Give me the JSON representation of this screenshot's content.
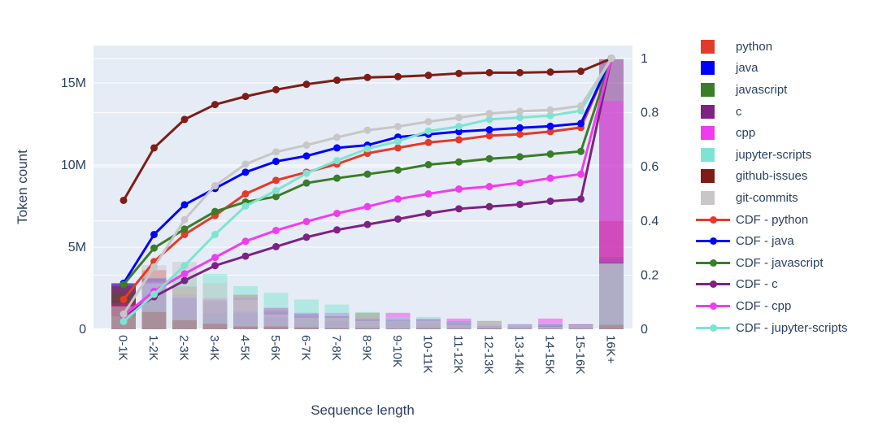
{
  "chart_data": {
    "type": "bar+line",
    "title": "",
    "xlabel": "Sequence length",
    "categories": [
      "0-1K",
      "1-2K",
      "2-3K",
      "3-4K",
      "4-5K",
      "5-6K",
      "6-7K",
      "7-8K",
      "8-9K",
      "9-10K",
      "10-11K",
      "11-12K",
      "12-13K",
      "13-14K",
      "14-15K",
      "15-16K",
      "16K+"
    ],
    "left_axis": {
      "label": "Token count",
      "tick_labels": [
        "0",
        "5M",
        "10M",
        "15M"
      ],
      "tick_values": [
        0,
        5,
        10,
        15
      ],
      "range": [
        0,
        17.28
      ],
      "unit": "millions of tokens"
    },
    "right_axis": {
      "tick_labels": [
        "0",
        "0.2",
        "0.4",
        "0.6",
        "0.8",
        "1"
      ],
      "tick_values": [
        0,
        0.2,
        0.4,
        0.6,
        0.8,
        1
      ],
      "range": [
        0,
        1.048
      ]
    },
    "grid": "on",
    "legend_position": "right",
    "plot_bg": "#e5ecf6",
    "text_color": "#2a3f5f",
    "bar_opacity": 0.5,
    "bar_series": [
      {
        "name": "python",
        "color": "#e23b2c",
        "values": [
          2.8,
          3.6,
          2.6,
          1.8,
          2.1,
          1.3,
          0.8,
          0.8,
          1.0,
          0.5,
          0.5,
          0.3,
          0.5,
          0.2,
          0.3,
          0.3,
          6.6
        ]
      },
      {
        "name": "java",
        "color": "#0000ff",
        "values": [
          2.8,
          3.1,
          1.9,
          1.0,
          1.0,
          0.7,
          0.3,
          0.5,
          0.2,
          0.5,
          0.2,
          0.2,
          0.2,
          0.1,
          0.2,
          0.2,
          4.1
        ]
      },
      {
        "name": "javascript",
        "color": "#3a7d28",
        "values": [
          2.2,
          1.7,
          0.9,
          0.9,
          0.4,
          0.3,
          0.6,
          0.3,
          0.2,
          0.3,
          0.3,
          0.2,
          0.2,
          0.2,
          0.2,
          0.2,
          4.4
        ]
      },
      {
        "name": "c",
        "color": "#7f2183",
        "values": [
          1.6,
          2.2,
          1.9,
          1.7,
          1.1,
          1.1,
          0.95,
          0.8,
          0.6,
          0.6,
          0.6,
          0.5,
          0.2,
          0.3,
          0.3,
          0.3,
          16.45
        ]
      },
      {
        "name": "cpp",
        "color": "#ef3dee",
        "values": [
          1.6,
          2.9,
          2.1,
          1.9,
          1.9,
          1.3,
          1.0,
          1.0,
          0.65,
          1.0,
          0.65,
          0.65,
          0.3,
          0.3,
          0.65,
          0.3,
          13.9
        ]
      },
      {
        "name": "jupyter-scripts",
        "color": "#7fe3d2",
        "values": [
          0.8,
          2.8,
          3.3,
          3.37,
          2.63,
          2.22,
          1.81,
          1.51,
          1.05,
          0.75,
          0.75,
          0.5,
          0.45,
          0.3,
          0.33,
          0.28,
          4.0
        ]
      },
      {
        "name": "github-issues",
        "color": "#7d1d16",
        "values": [
          2.63,
          1.05,
          0.55,
          0.33,
          0.17,
          0.17,
          0.11,
          0.06,
          0.06,
          0.03,
          0.06,
          0.03,
          0.06,
          0.02,
          0.02,
          0.02,
          0.27
        ]
      },
      {
        "name": "git-commits",
        "color": "#c8c6c6",
        "values": [
          1.4,
          3.9,
          4.1,
          2.8,
          1.8,
          0.9,
          0.7,
          0.7,
          0.5,
          0.5,
          0.5,
          0.25,
          0.5,
          0.25,
          0.15,
          0.25,
          4.0
        ]
      }
    ],
    "cdf_series": [
      {
        "name": "CDF - python",
        "color": "#e23b2c",
        "in_legend": true,
        "values": [
          0.11,
          0.25,
          0.35,
          0.42,
          0.5,
          0.55,
          0.58,
          0.61,
          0.65,
          0.67,
          0.69,
          0.7,
          0.715,
          0.72,
          0.73,
          0.745,
          1.0
        ]
      },
      {
        "name": "CDF - java",
        "color": "#0000ff",
        "in_legend": true,
        "values": [
          0.17,
          0.35,
          0.46,
          0.52,
          0.58,
          0.62,
          0.64,
          0.67,
          0.68,
          0.71,
          0.72,
          0.73,
          0.737,
          0.744,
          0.75,
          0.76,
          1.0
        ]
      },
      {
        "name": "CDF - javascript",
        "color": "#3a7d28",
        "in_legend": true,
        "values": [
          0.165,
          0.3,
          0.37,
          0.435,
          0.47,
          0.49,
          0.54,
          0.558,
          0.573,
          0.588,
          0.608,
          0.618,
          0.63,
          0.637,
          0.647,
          0.657,
          1.0
        ]
      },
      {
        "name": "CDF - c",
        "color": "#7f2183",
        "in_legend": true,
        "values": [
          0.05,
          0.12,
          0.18,
          0.235,
          0.27,
          0.305,
          0.34,
          0.367,
          0.387,
          0.407,
          0.428,
          0.445,
          0.453,
          0.461,
          0.473,
          0.481,
          1.0
        ]
      },
      {
        "name": "CDF - cpp",
        "color": "#ef3dee",
        "in_legend": true,
        "values": [
          0.051,
          0.14,
          0.205,
          0.265,
          0.325,
          0.365,
          0.398,
          0.428,
          0.453,
          0.481,
          0.5,
          0.518,
          0.527,
          0.541,
          0.558,
          0.573,
          1.0
        ]
      },
      {
        "name": "CDF - jupyter-scripts",
        "color": "#7fe3d2",
        "in_legend": true,
        "values": [
          0.029,
          0.129,
          0.235,
          0.35,
          0.455,
          0.512,
          0.576,
          0.623,
          0.667,
          0.694,
          0.732,
          0.749,
          0.775,
          0.782,
          0.789,
          0.807,
          1.0
        ]
      },
      {
        "name": "CDF - github-issues",
        "color": "#7d1d16",
        "in_legend": false,
        "values": [
          0.476,
          0.67,
          0.775,
          0.83,
          0.86,
          0.885,
          0.905,
          0.92,
          0.93,
          0.933,
          0.938,
          0.945,
          0.948,
          0.948,
          0.95,
          0.953,
          1.0
        ]
      },
      {
        "name": "CDF - git-commits",
        "color": "#c8c6c6",
        "in_legend": false,
        "values": [
          0.056,
          0.23,
          0.405,
          0.53,
          0.61,
          0.655,
          0.68,
          0.709,
          0.735,
          0.749,
          0.767,
          0.782,
          0.797,
          0.805,
          0.81,
          0.825,
          1.0
        ]
      }
    ]
  }
}
